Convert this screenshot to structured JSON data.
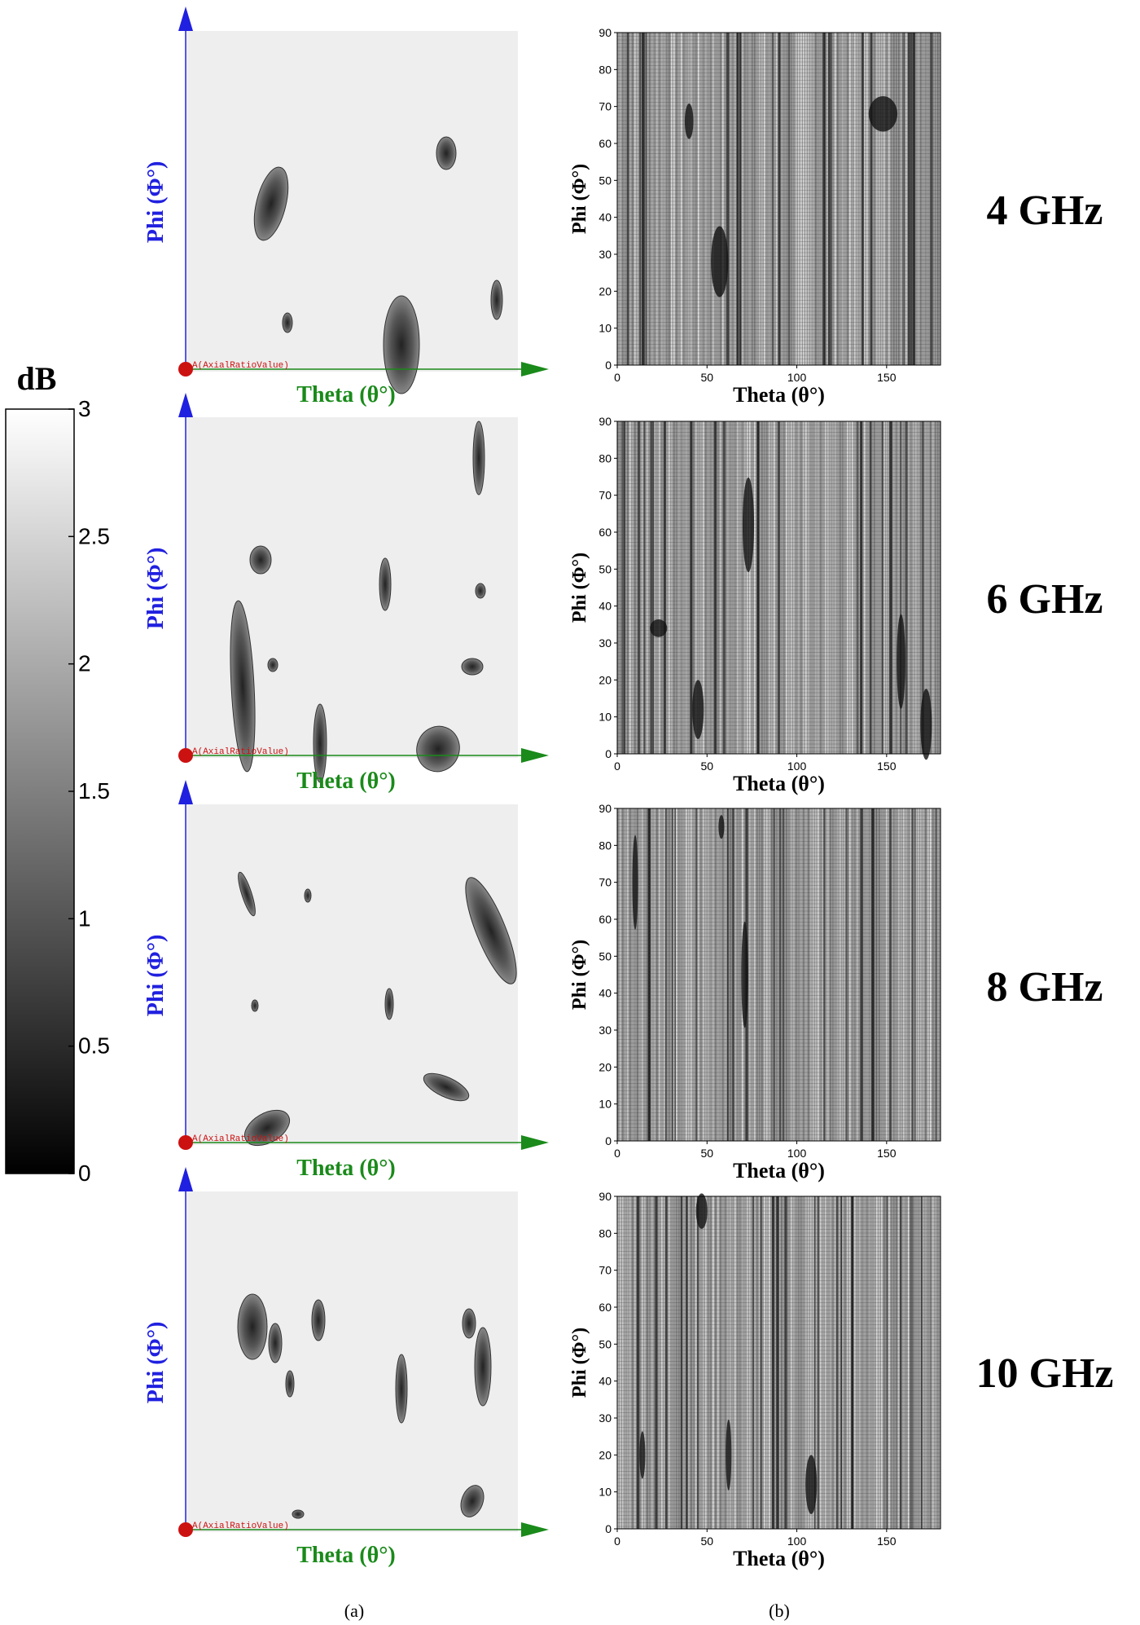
{
  "colorbar": {
    "title": "dB",
    "ticks": [
      "3",
      "2.5",
      "2",
      "1.5",
      "1",
      "0.5",
      "0"
    ],
    "range": [
      0,
      3
    ],
    "colors": {
      "low": "#000000",
      "high": "#ffffff"
    }
  },
  "captions": {
    "a": "(a)",
    "b": "(b)"
  },
  "sim": {
    "y_label": "Phi (Φ°)",
    "x_label": "Theta (θ°)",
    "origin_label": "A(AxialRatioValue)",
    "colors": {
      "y_axis": "#2020e0",
      "x_axis": "#1a8a1a",
      "origin": "#cc1111",
      "bg": "#eeeeee"
    }
  },
  "meas": {
    "y_label": "Phi (Φ°)",
    "x_label": "Theta (θ°)",
    "x_ticks": [
      "0",
      "50",
      "100",
      "150"
    ],
    "y_ticks": [
      "0",
      "10",
      "20",
      "30",
      "40",
      "50",
      "60",
      "70",
      "80",
      "90"
    ],
    "xlim": [
      0,
      180
    ],
    "ylim": [
      0,
      90
    ]
  },
  "panels": [
    {
      "freq": "4 GHz"
    },
    {
      "freq": "6 GHz"
    },
    {
      "freq": "8 GHz"
    },
    {
      "freq": "10 GHz"
    }
  ],
  "chart_data": [
    {
      "type": "heatmap",
      "title": "",
      "xlabel": "Theta (θ°)",
      "ylabel": "Phi (Φ°)",
      "colorbar_label": "dB",
      "zlim": [
        0,
        3
      ],
      "series": [
        {
          "name": "4 GHz",
          "low_ar_regions": [
            {
              "theta": 57,
              "phi": 28,
              "sd_t": 3,
              "sd_p": 6
            },
            {
              "theta": 148,
              "phi": 68,
              "sd_t": 5,
              "sd_p": 3
            },
            {
              "theta": 40,
              "phi": 66,
              "sd_t": 1.5,
              "sd_p": 3
            }
          ]
        },
        {
          "name": "6 GHz",
          "low_ar_regions": [
            {
              "theta": 73,
              "phi": 62,
              "sd_t": 2,
              "sd_p": 8
            },
            {
              "theta": 158,
              "phi": 25,
              "sd_t": 1.5,
              "sd_p": 8
            },
            {
              "theta": 172,
              "phi": 8,
              "sd_t": 2,
              "sd_p": 6
            },
            {
              "theta": 23,
              "phi": 34,
              "sd_t": 3,
              "sd_p": 1.5
            },
            {
              "theta": 45,
              "phi": 12,
              "sd_t": 2,
              "sd_p": 5
            }
          ]
        },
        {
          "name": "8 GHz",
          "low_ar_regions": [
            {
              "theta": 71,
              "phi": 45,
              "sd_t": 1.2,
              "sd_p": 9
            },
            {
              "theta": 10,
              "phi": 70,
              "sd_t": 1,
              "sd_p": 8
            },
            {
              "theta": 58,
              "phi": 85,
              "sd_t": 1,
              "sd_p": 2
            }
          ]
        },
        {
          "name": "10 GHz",
          "low_ar_regions": [
            {
              "theta": 108,
              "phi": 12,
              "sd_t": 2,
              "sd_p": 5
            },
            {
              "theta": 47,
              "phi": 86,
              "sd_t": 2,
              "sd_p": 3
            },
            {
              "theta": 62,
              "phi": 20,
              "sd_t": 1,
              "sd_p": 6
            },
            {
              "theta": 14,
              "phi": 20,
              "sd_t": 1,
              "sd_p": 4
            }
          ]
        }
      ]
    }
  ]
}
